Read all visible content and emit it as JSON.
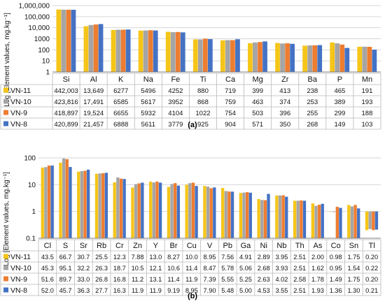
{
  "colors": {
    "grid": "#d6d6d6",
    "axis": "#808080",
    "table_border": "#b8b8b8"
  },
  "chart_data": [
    {
      "panel": "(a)",
      "type": "bar",
      "scale": "log",
      "ylabel": "Log [Element values, mg.kg⁻¹]",
      "yticks": [
        "1",
        "10",
        "100",
        "1000",
        "10,000",
        "100,000",
        "1,000,000"
      ],
      "ylim": [
        1,
        1000000
      ],
      "grid": true,
      "legend": "table-below",
      "categories": [
        "Si",
        "Al",
        "K",
        "Na",
        "Fe",
        "Ti",
        "Ca",
        "Mg",
        "Zr",
        "Ba",
        "P",
        "Mn"
      ],
      "series": [
        {
          "name": "VN-11",
          "color": "#f5c518",
          "labels": [
            "442,003",
            "13,649",
            "6277",
            "5496",
            "4252",
            "880",
            "719",
            "399",
            "413",
            "238",
            "465",
            "191"
          ],
          "values": [
            442003,
            13649,
            6277,
            5496,
            4252,
            880,
            719,
            399,
            413,
            238,
            465,
            191
          ]
        },
        {
          "name": "VN-10",
          "color": "#a5a5a5",
          "labels": [
            "423,816",
            "17,491",
            "6585",
            "5617",
            "3952",
            "868",
            "759",
            "463",
            "374",
            "253",
            "389",
            "193"
          ],
          "values": [
            423816,
            17491,
            6585,
            5617,
            3952,
            868,
            759,
            463,
            374,
            253,
            389,
            193
          ]
        },
        {
          "name": "VN-9",
          "color": "#ed7d31",
          "labels": [
            "418,897",
            "19,524",
            "6655",
            "5932",
            "4104",
            "1022",
            "754",
            "503",
            "396",
            "255",
            "299",
            "188"
          ],
          "values": [
            418897,
            19524,
            6655,
            5932,
            4104,
            1022,
            754,
            503,
            396,
            255,
            299,
            188
          ]
        },
        {
          "name": "VN-8",
          "color": "#4472c4",
          "labels": [
            "420,899",
            "21,457",
            "6888",
            "5611",
            "3779",
            "925",
            "904",
            "571",
            "350",
            "268",
            "149",
            "103"
          ],
          "values": [
            420899,
            21457,
            6888,
            5611,
            3779,
            925,
            904,
            571,
            350,
            268,
            149,
            103
          ]
        }
      ]
    },
    {
      "panel": "(b)",
      "type": "bar",
      "scale": "log",
      "ylabel": "Log [Element values, mg.kg⁻¹]",
      "yticks": [
        "0.1",
        "1",
        "10",
        "100"
      ],
      "ylim": [
        0.1,
        100
      ],
      "grid": true,
      "legend": "table-below",
      "categories": [
        "Cl",
        "S",
        "Sr",
        "Rb",
        "Cr",
        "Zn",
        "Y",
        "Br",
        "Cu",
        "V",
        "Pb",
        "Ga",
        "Ni",
        "Nb",
        "Th",
        "As",
        "Co",
        "Sn",
        "Tl"
      ],
      "series": [
        {
          "name": "VN-11",
          "color": "#f5c518",
          "labels": [
            "43.5",
            "66.7",
            "30.7",
            "25.5",
            "12.3",
            "7.88",
            "13.0",
            "8.27",
            "10.0",
            "8.95",
            "7.56",
            "4.91",
            "2.89",
            "3.95",
            "2.51",
            "2.00",
            "0.98",
            "1.75",
            "0.20"
          ],
          "values": [
            43.5,
            66.7,
            30.7,
            25.5,
            12.3,
            7.88,
            13.0,
            8.27,
            10.0,
            8.95,
            7.56,
            4.91,
            2.89,
            3.95,
            2.51,
            2.0,
            0.98,
            1.75,
            0.2
          ]
        },
        {
          "name": "VN-10",
          "color": "#a5a5a5",
          "labels": [
            "45.3",
            "95.1",
            "32.2",
            "26.3",
            "18.7",
            "10.5",
            "12.1",
            "10.6",
            "11.4",
            "8.47",
            "5.78",
            "5.06",
            "2.68",
            "3.93",
            "2.51",
            "1.62",
            "0.95",
            "1.54",
            "0.22"
          ],
          "values": [
            45.3,
            95.1,
            32.2,
            26.3,
            18.7,
            10.5,
            12.1,
            10.6,
            11.4,
            8.47,
            5.78,
            5.06,
            2.68,
            3.93,
            2.51,
            1.62,
            0.95,
            1.54,
            0.22
          ]
        },
        {
          "name": "VN-9",
          "color": "#ed7d31",
          "labels": [
            "51.6",
            "89.7",
            "33.0",
            "26.8",
            "16.8",
            "11.2",
            "13.1",
            "11.4",
            "11.9",
            "7.39",
            "5.55",
            "5.25",
            "2.63",
            "4.02",
            "2.58",
            "1.78",
            "1.49",
            "1.75",
            "0.20"
          ],
          "values": [
            51.6,
            89.7,
            33.0,
            26.8,
            16.8,
            11.2,
            13.1,
            11.4,
            11.9,
            7.39,
            5.55,
            5.25,
            2.63,
            4.02,
            2.58,
            1.78,
            1.49,
            1.75,
            0.2
          ]
        },
        {
          "name": "VN-8",
          "color": "#4472c4",
          "labels": [
            "52.0",
            "45.7",
            "36.3",
            "27.7",
            "16.3",
            "11.9",
            "11.9",
            "9.19",
            "8.95",
            "7.90",
            "5.48",
            "5.00",
            "4.53",
            "3.55",
            "2.51",
            "1.93",
            "1.36",
            "1.30",
            "0.21"
          ],
          "values": [
            52.0,
            45.7,
            36.3,
            27.7,
            16.3,
            11.9,
            11.9,
            9.19,
            8.95,
            7.9,
            5.48,
            5.0,
            4.53,
            3.55,
            2.51,
            1.93,
            1.36,
            1.3,
            0.21
          ]
        }
      ]
    }
  ]
}
